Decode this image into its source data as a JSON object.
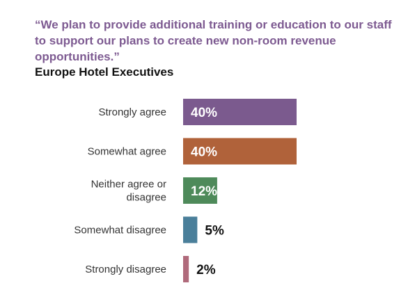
{
  "quote": "“We plan to provide additional training or education to our staff to support our plans to create new non-room revenue opportunities.”",
  "subtitle": "Europe Hotel Executives",
  "chart_data": {
    "type": "bar",
    "orientation": "horizontal",
    "title": "“We plan to provide additional training or education to our staff to support our plans to create new non-room revenue opportunities.”",
    "subtitle": "Europe Hotel Executives",
    "xlabel": "",
    "ylabel": "",
    "unit": "%",
    "xlim": [
      0,
      40
    ],
    "grid": false,
    "legend": "none",
    "categories": [
      [
        "Strongly agree"
      ],
      [
        "Somewhat agree"
      ],
      [
        "Neither agree or",
        "disagree"
      ],
      [
        "Somewhat disagree"
      ],
      [
        "Strongly disagree"
      ]
    ],
    "values": [
      40,
      40,
      12,
      5,
      2
    ],
    "data_labels": [
      "40%",
      "40%",
      "12%",
      "5%",
      "2%"
    ],
    "colors": [
      "#7b5a8e",
      "#b0623a",
      "#4e8a5a",
      "#4a7f9a",
      "#b06a7b"
    ]
  }
}
